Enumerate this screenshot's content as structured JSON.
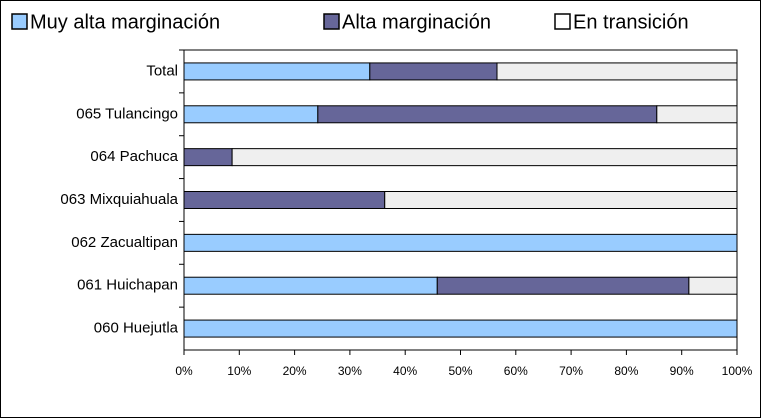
{
  "chart_data": {
    "type": "stacked_barh",
    "categories": [
      "Total",
      "065 Tulancingo",
      "064 Pachuca",
      "063 Mixquiahuala",
      "062 Zacualtipan",
      "061 Huichapan",
      "060 Huejutla"
    ],
    "series": [
      {
        "name": "Muy alta marginación",
        "color": "#99ccff",
        "values": [
          33.6,
          24.2,
          0,
          0,
          100,
          45.8,
          100
        ]
      },
      {
        "name": "Alta marginación",
        "color": "#666699",
        "values": [
          23,
          61.3,
          8.7,
          36.3,
          0,
          45.5,
          0
        ]
      },
      {
        "name": "En transición",
        "color": "#efefef",
        "values": [
          43.4,
          14.5,
          91.3,
          63.7,
          0,
          8.7,
          0
        ]
      }
    ],
    "xlim": [
      0,
      100
    ],
    "xticks": [
      {
        "value": 0,
        "label": "0%"
      },
      {
        "value": 10,
        "label": "10%"
      },
      {
        "value": 20,
        "label": "20%"
      },
      {
        "value": 30,
        "label": "30%"
      },
      {
        "value": 40,
        "label": "40%"
      },
      {
        "value": 50,
        "label": "50%"
      },
      {
        "value": 60,
        "label": "60%"
      },
      {
        "value": 70,
        "label": "70%"
      },
      {
        "value": 80,
        "label": "80%"
      },
      {
        "value": 90,
        "label": "90%"
      },
      {
        "value": 100,
        "label": "100%"
      }
    ],
    "legend": "top"
  }
}
